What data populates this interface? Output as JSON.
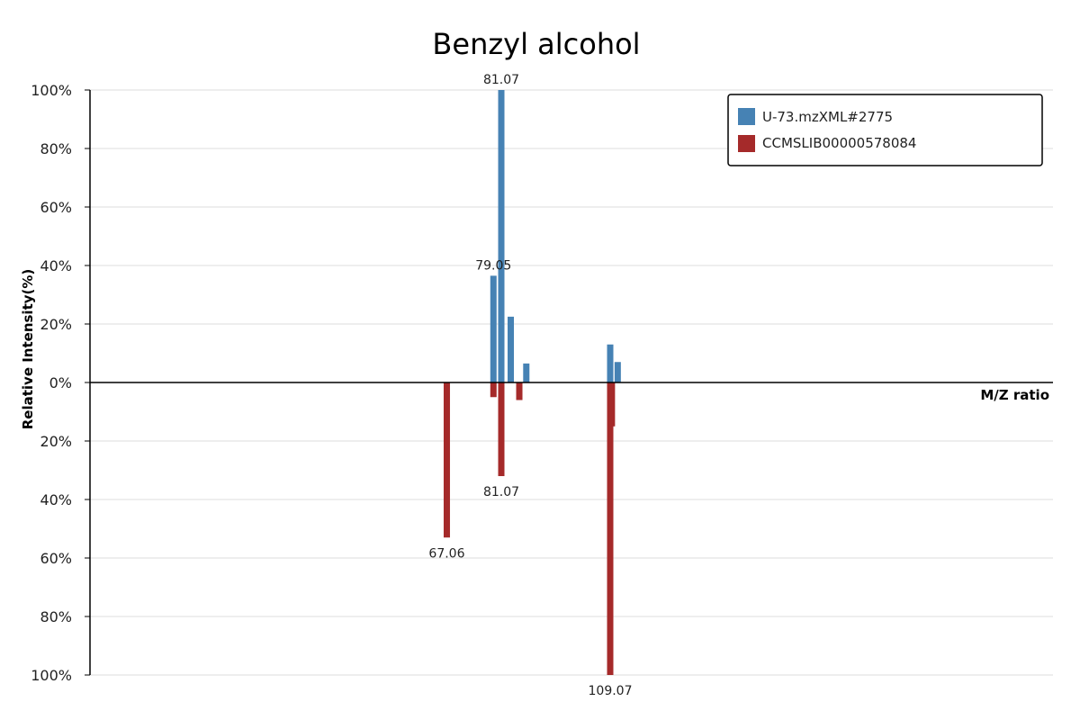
{
  "chart_data": {
    "type": "bar",
    "title": "Benzyl alcohol",
    "xlabel": "M/Z ratio",
    "ylabel": "Relative Intensity(%)",
    "layout": "mirror",
    "ylim": [
      -100,
      100
    ],
    "y_ticks": [
      {
        "value": 100,
        "label": "100%"
      },
      {
        "value": 80,
        "label": "80%"
      },
      {
        "value": 60,
        "label": "60%"
      },
      {
        "value": 40,
        "label": "40%"
      },
      {
        "value": 20,
        "label": "20%"
      },
      {
        "value": 0,
        "label": "0%"
      },
      {
        "value": -20,
        "label": "20%"
      },
      {
        "value": -40,
        "label": "40%"
      },
      {
        "value": -60,
        "label": "60%"
      },
      {
        "value": -80,
        "label": "80%"
      },
      {
        "value": -100,
        "label": "100%"
      }
    ],
    "grid": true,
    "legend_position": "top-right",
    "series": [
      {
        "name": "U-73.mzXML#2775",
        "color": "#4682b4",
        "direction": "up",
        "peaks": [
          {
            "mz": 79.05,
            "intensity": 36.5,
            "label": "79.05"
          },
          {
            "mz": 81.07,
            "intensity": 100,
            "label": "81.07"
          },
          {
            "mz": 83.5,
            "intensity": 22.5,
            "label": ""
          },
          {
            "mz": 87.5,
            "intensity": 6.5,
            "label": ""
          },
          {
            "mz": 109.07,
            "intensity": 13.0,
            "label": ""
          },
          {
            "mz": 111.0,
            "intensity": 7.0,
            "label": ""
          }
        ]
      },
      {
        "name": "CCMSLIB00000578084",
        "color": "#a52a2a",
        "direction": "down",
        "peaks": [
          {
            "mz": 67.06,
            "intensity": 53,
            "label": "67.06"
          },
          {
            "mz": 79.05,
            "intensity": 5,
            "label": ""
          },
          {
            "mz": 81.07,
            "intensity": 32,
            "label": "81.07"
          },
          {
            "mz": 85.7,
            "intensity": 6,
            "label": ""
          },
          {
            "mz": 109.07,
            "intensity": 100,
            "label": "109.07"
          },
          {
            "mz": 109.5,
            "intensity": 15,
            "label": ""
          }
        ]
      }
    ]
  }
}
